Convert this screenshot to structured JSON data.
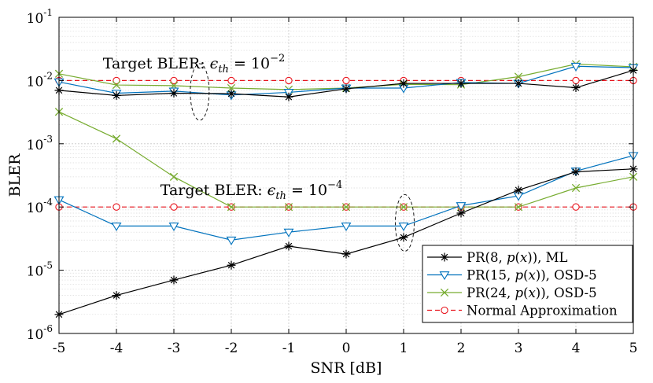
{
  "chart_data": {
    "type": "line",
    "x_scale": "linear",
    "y_scale": "log",
    "xlabel": "SNR [dB]",
    "ylabel": "BLER",
    "xlim": [
      -5,
      5
    ],
    "ylim": [
      1e-06,
      0.1
    ],
    "grid": true,
    "legend_position": "bottom-right",
    "x": [
      -5,
      -4,
      -3,
      -2,
      -1,
      0,
      1,
      2,
      3,
      4,
      5
    ],
    "x_tick_labels": [
      "-5",
      "-4",
      "-3",
      "-2",
      "-1",
      "0",
      "1",
      "2",
      "3",
      "4",
      "5"
    ],
    "y_ticks": [
      {
        "value": 1e-06,
        "base": "10",
        "exp": "-6"
      },
      {
        "value": 1e-05,
        "base": "10",
        "exp": "-5"
      },
      {
        "value": 0.0001,
        "base": "10",
        "exp": "-4"
      },
      {
        "value": 0.001,
        "base": "10",
        "exp": "-3"
      },
      {
        "value": 0.01,
        "base": "10",
        "exp": "-2"
      },
      {
        "value": 0.1,
        "base": "10",
        "exp": "-1"
      }
    ],
    "series": [
      {
        "name": "PR(8, p(x)), ML",
        "color": "#000000",
        "marker": "star",
        "dashed": false,
        "legend_parts": [
          "PR(8, ",
          "p",
          "(",
          "x",
          ")), ML"
        ],
        "values": [
          0.007,
          0.0058,
          0.0063,
          0.0062,
          0.0055,
          0.0074,
          0.009,
          0.009,
          0.009,
          0.0077,
          0.0145
        ]
      },
      {
        "name": "PR(8, p(x)), ML",
        "color": "#000000",
        "marker": "star",
        "dashed": false,
        "in_legend": false,
        "values": [
          2e-06,
          4e-06,
          7e-06,
          1.2e-05,
          2.4e-05,
          1.8e-05,
          3.3e-05,
          8e-05,
          0.000185,
          0.00036,
          0.0004
        ]
      },
      {
        "name": "PR(15, p(x)), OSD-5",
        "color": "#0072BD",
        "marker": "triangle-down",
        "dashed": false,
        "legend_parts": [
          "PR(15, ",
          "p",
          "(",
          "x",
          ")), OSD-5"
        ],
        "values": [
          0.0095,
          0.0063,
          0.0068,
          0.0059,
          0.0065,
          0.0076,
          0.0076,
          0.0093,
          0.009,
          0.0168,
          0.016
        ]
      },
      {
        "name": "PR(15, p(x)), OSD-5",
        "color": "#0072BD",
        "marker": "triangle-down",
        "dashed": false,
        "in_legend": false,
        "values": [
          0.00013,
          5e-05,
          5e-05,
          3e-05,
          4e-05,
          5e-05,
          5e-05,
          0.000105,
          0.00015,
          0.00037,
          0.00065
        ]
      },
      {
        "name": "PR(24, p(x)), OSD-5",
        "color": "#77AC30",
        "marker": "x",
        "dashed": false,
        "legend_parts": [
          "PR(24, ",
          "p",
          "(",
          "x",
          ")), OSD-5"
        ],
        "values": [
          0.0128,
          0.0085,
          0.0083,
          0.0076,
          0.0072,
          0.0076,
          0.0087,
          0.0086,
          0.0115,
          0.0182,
          0.0165
        ]
      },
      {
        "name": "PR(24, p(x)), OSD-5",
        "color": "#77AC30",
        "marker": "x",
        "dashed": false,
        "in_legend": false,
        "values": [
          0.0032,
          0.0012,
          0.0003,
          0.0001,
          0.0001,
          0.0001,
          0.0001,
          0.0001,
          0.0001,
          0.0002,
          0.0003
        ]
      },
      {
        "name": "Normal Approximation",
        "color": "#E8141D",
        "marker": "circle",
        "dashed": true,
        "legend_parts": [
          "Normal Approximation"
        ],
        "values": [
          0.01,
          0.01,
          0.01,
          0.01,
          0.01,
          0.01,
          0.01,
          0.01,
          0.01,
          0.01,
          0.01
        ]
      },
      {
        "name": "Normal Approximation",
        "color": "#E8141D",
        "marker": "circle",
        "dashed": true,
        "in_legend": false,
        "values": [
          0.0001,
          0.0001,
          0.0001,
          0.0001,
          0.0001,
          0.0001,
          0.0001,
          0.0001,
          0.0001,
          0.0001,
          0.0001
        ]
      }
    ],
    "annotations": [
      {
        "prefix": "Target BLER: ",
        "symbol": "ϵ",
        "sub": "th",
        "eq": " = 10",
        "exp": "−2",
        "anchor_x": -2.65,
        "anchor_y": 0.0155,
        "ellipse_x": -2.55,
        "ellipse_y": 0.0066
      },
      {
        "prefix": "Target BLER: ",
        "symbol": "ϵ",
        "sub": "th",
        "eq": " = 10",
        "exp": "−4",
        "anchor_x": -1.65,
        "anchor_y": 0.000155,
        "ellipse_x": 1.02,
        "ellipse_y": 5.6e-05
      }
    ]
  }
}
